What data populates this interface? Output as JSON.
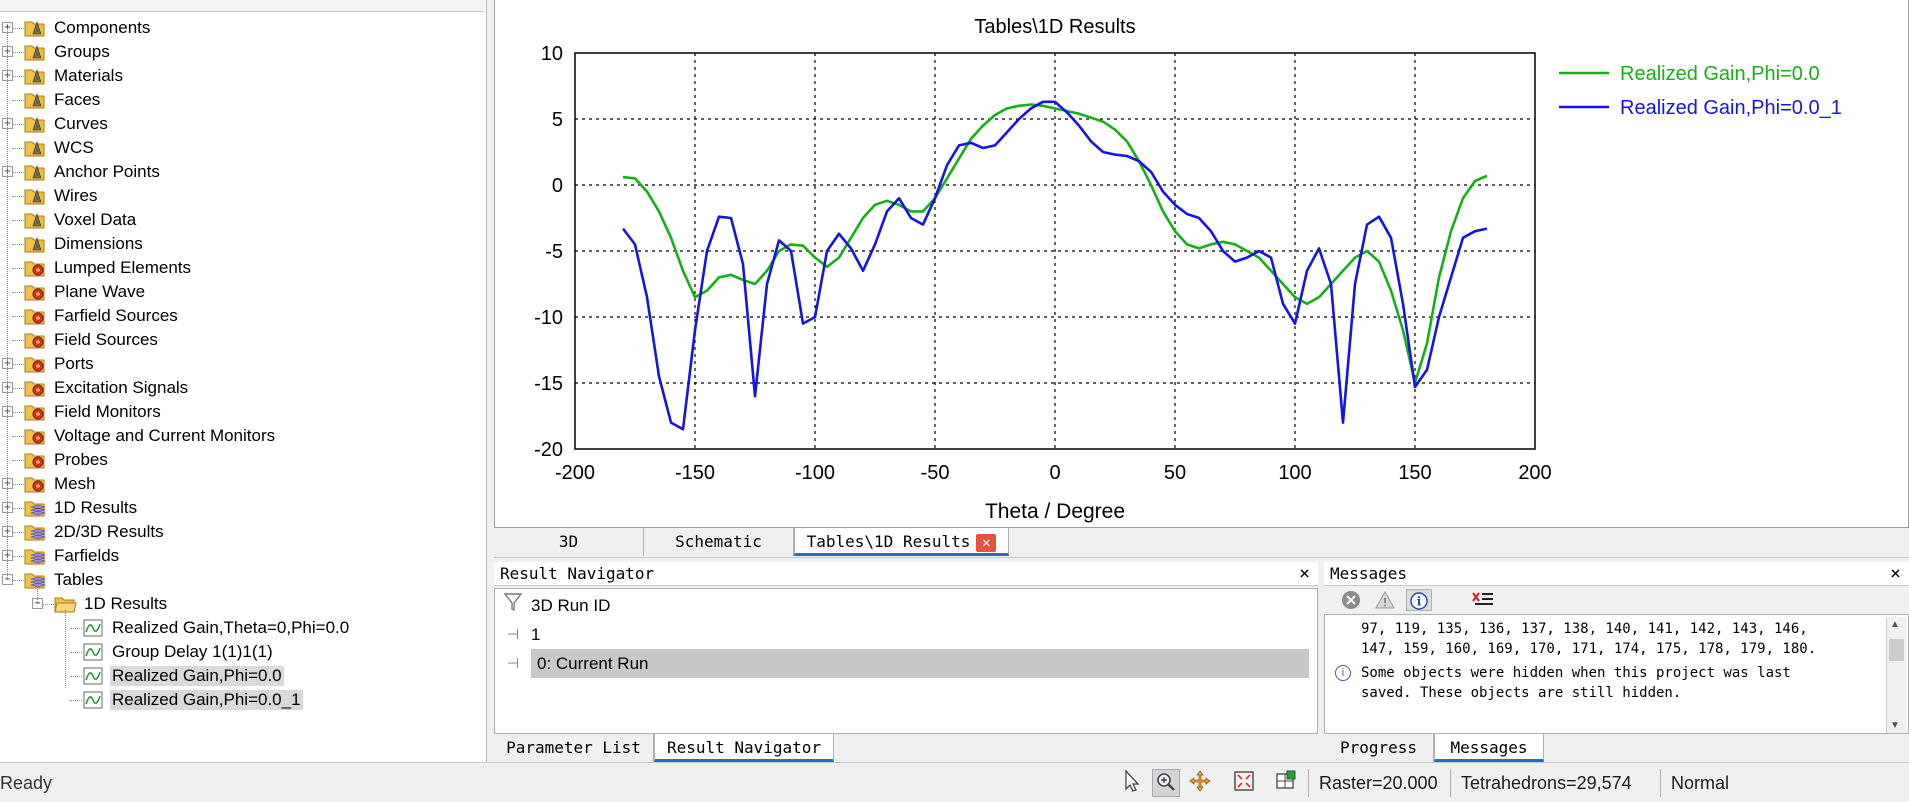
{
  "tree": {
    "items": [
      {
        "label": "Components",
        "icon": "folder-probe",
        "level": 0,
        "expander": "+"
      },
      {
        "label": "Groups",
        "icon": "folder-probe",
        "level": 0,
        "expander": "+"
      },
      {
        "label": "Materials",
        "icon": "folder-probe",
        "level": 0,
        "expander": "+"
      },
      {
        "label": "Faces",
        "icon": "folder-probe",
        "level": 0,
        "expander": ""
      },
      {
        "label": "Curves",
        "icon": "folder-probe",
        "level": 0,
        "expander": "+"
      },
      {
        "label": "WCS",
        "icon": "folder-probe",
        "level": 0,
        "expander": ""
      },
      {
        "label": "Anchor Points",
        "icon": "folder-probe",
        "level": 0,
        "expander": "+"
      },
      {
        "label": "Wires",
        "icon": "folder-probe",
        "level": 0,
        "expander": ""
      },
      {
        "label": "Voxel Data",
        "icon": "folder-probe",
        "level": 0,
        "expander": ""
      },
      {
        "label": "Dimensions",
        "icon": "folder-probe",
        "level": 0,
        "expander": ""
      },
      {
        "label": "Lumped Elements",
        "icon": "folder-gear",
        "level": 0,
        "expander": ""
      },
      {
        "label": "Plane Wave",
        "icon": "folder-gear",
        "level": 0,
        "expander": ""
      },
      {
        "label": "Farfield Sources",
        "icon": "folder-gear",
        "level": 0,
        "expander": ""
      },
      {
        "label": "Field Sources",
        "icon": "folder-gear",
        "level": 0,
        "expander": ""
      },
      {
        "label": "Ports",
        "icon": "folder-gear",
        "level": 0,
        "expander": "+"
      },
      {
        "label": "Excitation Signals",
        "icon": "folder-gear",
        "level": 0,
        "expander": "+"
      },
      {
        "label": "Field Monitors",
        "icon": "folder-gear",
        "level": 0,
        "expander": "+"
      },
      {
        "label": "Voltage and Current Monitors",
        "icon": "folder-gear",
        "level": 0,
        "expander": ""
      },
      {
        "label": "Probes",
        "icon": "folder-gear",
        "level": 0,
        "expander": ""
      },
      {
        "label": "Mesh",
        "icon": "folder-gear",
        "level": 0,
        "expander": "+"
      },
      {
        "label": "1D Results",
        "icon": "folder-stack",
        "level": 0,
        "expander": "+"
      },
      {
        "label": "2D/3D Results",
        "icon": "folder-stack",
        "level": 0,
        "expander": "+"
      },
      {
        "label": "Farfields",
        "icon": "folder-stack",
        "level": 0,
        "expander": "+"
      },
      {
        "label": "Tables",
        "icon": "folder-stack",
        "level": 0,
        "expander": "-"
      },
      {
        "label": "1D Results",
        "icon": "folder-open",
        "level": 1,
        "expander": "-"
      },
      {
        "label": "Realized Gain,Theta=0,Phi=0.0",
        "icon": "curve",
        "level": 2,
        "expander": ""
      },
      {
        "label": "Group Delay 1(1)1(1)",
        "icon": "curve",
        "level": 2,
        "expander": ""
      },
      {
        "label": "Realized Gain,Phi=0.0",
        "icon": "curve",
        "level": 2,
        "expander": "",
        "selected": true
      },
      {
        "label": "Realized Gain,Phi=0.0_1",
        "icon": "curve",
        "level": 2,
        "expander": "",
        "selected": true
      }
    ]
  },
  "chart_data": {
    "type": "line",
    "title": "Tables\\1D Results",
    "xlabel": "Theta / Degree",
    "ylabel": "",
    "xlim": [
      -200,
      200
    ],
    "ylim": [
      -20,
      10
    ],
    "xticks": [
      -200,
      -150,
      -100,
      -50,
      0,
      50,
      100,
      150,
      200
    ],
    "yticks": [
      10,
      5,
      0,
      -5,
      -10,
      -15,
      -20
    ],
    "grid": true,
    "legend_position": "right",
    "series": [
      {
        "name": "Realized Gain,Phi=0.0",
        "color": "#16b016",
        "x": [
          -180,
          -175,
          -170,
          -165,
          -160,
          -155,
          -150,
          -145,
          -140,
          -135,
          -130,
          -125,
          -120,
          -115,
          -110,
          -105,
          -100,
          -95,
          -90,
          -85,
          -80,
          -75,
          -70,
          -65,
          -60,
          -55,
          -50,
          -45,
          -40,
          -35,
          -30,
          -25,
          -20,
          -15,
          -10,
          -5,
          0,
          5,
          10,
          15,
          20,
          25,
          30,
          35,
          40,
          45,
          50,
          55,
          60,
          65,
          70,
          75,
          80,
          85,
          90,
          95,
          100,
          105,
          110,
          115,
          120,
          125,
          130,
          135,
          140,
          145,
          150,
          155,
          160,
          165,
          170,
          175,
          180
        ],
        "y": [
          0.6,
          0.5,
          -0.5,
          -2.0,
          -4.0,
          -6.5,
          -8.5,
          -8.0,
          -7.0,
          -6.8,
          -7.2,
          -7.5,
          -6.5,
          -5.0,
          -4.5,
          -4.6,
          -5.5,
          -6.2,
          -5.5,
          -4.0,
          -2.5,
          -1.5,
          -1.2,
          -1.5,
          -2.0,
          -2.0,
          -1.0,
          0.5,
          2.0,
          3.5,
          4.5,
          5.3,
          5.8,
          6.0,
          6.1,
          6.0,
          5.8,
          5.6,
          5.4,
          5.1,
          4.8,
          4.2,
          3.3,
          1.8,
          0.0,
          -2.0,
          -3.5,
          -4.5,
          -4.8,
          -4.5,
          -4.3,
          -4.5,
          -5.0,
          -5.5,
          -6.5,
          -7.5,
          -8.5,
          -9.0,
          -8.5,
          -7.5,
          -6.5,
          -5.5,
          -5.0,
          -5.8,
          -8.0,
          -11.0,
          -15.0,
          -12.0,
          -7.0,
          -3.5,
          -1.0,
          0.3,
          0.7
        ]
      },
      {
        "name": "Realized Gain,Phi=0.0_1",
        "color": "#1414e6",
        "x": [
          -180,
          -175,
          -170,
          -165,
          -160,
          -155,
          -150,
          -145,
          -140,
          -135,
          -130,
          -125,
          -120,
          -115,
          -110,
          -105,
          -100,
          -95,
          -90,
          -85,
          -80,
          -75,
          -70,
          -65,
          -60,
          -55,
          -50,
          -45,
          -40,
          -35,
          -30,
          -25,
          -20,
          -15,
          -10,
          -5,
          0,
          5,
          10,
          15,
          20,
          25,
          30,
          35,
          40,
          45,
          50,
          55,
          60,
          65,
          70,
          75,
          80,
          85,
          90,
          95,
          100,
          105,
          110,
          115,
          120,
          125,
          130,
          135,
          140,
          145,
          150,
          155,
          160,
          165,
          170,
          175,
          180
        ],
        "y": [
          -3.3,
          -4.5,
          -8.5,
          -14.5,
          -18.0,
          -18.5,
          -11.0,
          -5.0,
          -2.4,
          -2.5,
          -6.0,
          -16.0,
          -7.5,
          -4.2,
          -5.0,
          -10.5,
          -10.0,
          -5.0,
          -3.7,
          -4.8,
          -6.5,
          -4.5,
          -2.0,
          -1.0,
          -2.5,
          -3.0,
          -1.0,
          1.5,
          3.0,
          3.2,
          2.8,
          3.0,
          4.0,
          5.0,
          5.8,
          6.3,
          6.3,
          5.5,
          4.5,
          3.3,
          2.5,
          2.3,
          2.2,
          1.8,
          1.0,
          -0.5,
          -1.5,
          -2.2,
          -2.5,
          -3.5,
          -5.0,
          -5.8,
          -5.5,
          -5.0,
          -5.5,
          -9.0,
          -10.5,
          -6.5,
          -4.8,
          -7.5,
          -18.0,
          -7.5,
          -3.0,
          -2.4,
          -4.0,
          -9.0,
          -15.3,
          -14.0,
          -10.0,
          -7.0,
          -4.0,
          -3.5,
          -3.3
        ]
      }
    ]
  },
  "doc_tabs": {
    "tab1": "3D",
    "tab2": "Schematic",
    "tab3": "Tables\\1D Results"
  },
  "result_navigator": {
    "title": "Result Navigator",
    "close": "×",
    "rows": {
      "header": "3D Run ID",
      "value": "1",
      "current": "0: Current Run"
    },
    "tabs": {
      "param_list": "Parameter List",
      "result_nav": "Result Navigator"
    }
  },
  "messages": {
    "title": "Messages",
    "close": "×",
    "line1": "97, 119, 135, 136, 137, 138, 140, 141, 142, 143, 146,",
    "line2": "147, 159, 160, 169, 170, 171, 174, 175, 178, 179, 180.",
    "info_line1": "Some objects were hidden when this project was last",
    "info_line2": "saved. These objects are still hidden.",
    "tabs": {
      "progress": "Progress",
      "messages": "Messages"
    }
  },
  "status_bar": {
    "text": "Ready",
    "raster": "Raster=20.000",
    "tetra": "Tetrahedrons=29,574",
    "normal": "Normal"
  }
}
